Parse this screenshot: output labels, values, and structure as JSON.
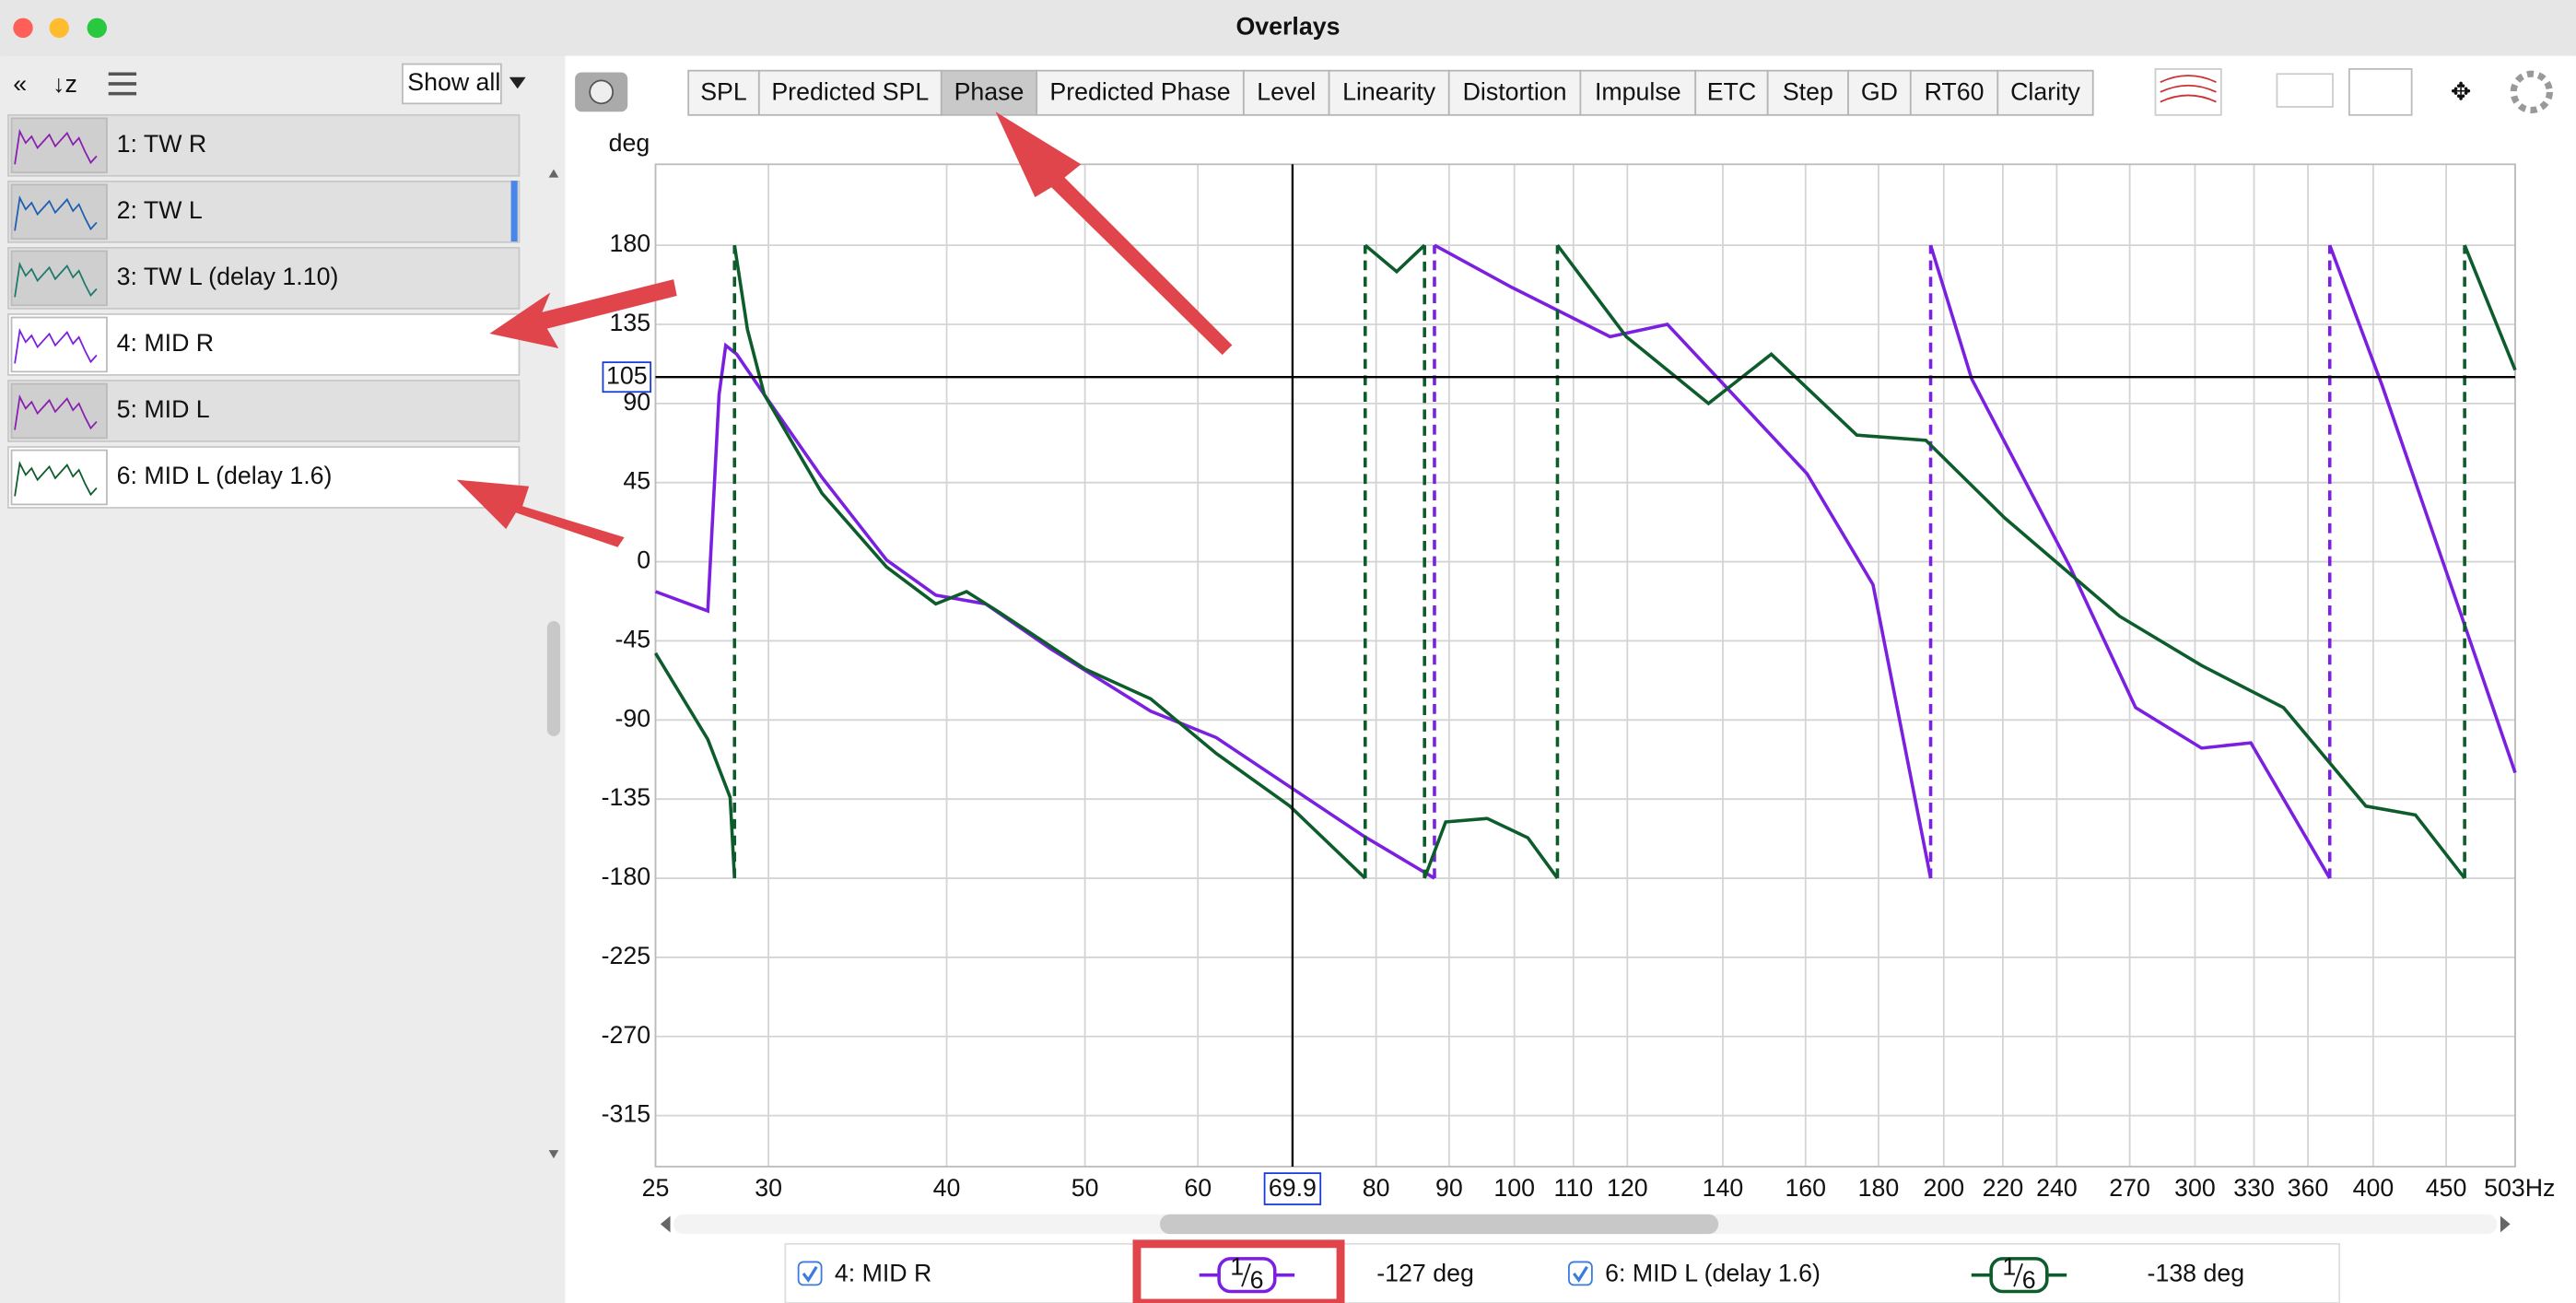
{
  "window": {
    "title": "Overlays"
  },
  "sidebar": {
    "filter": "Show all",
    "items": [
      {
        "label": "1: TW R",
        "active": false,
        "color": "#8a1fb0"
      },
      {
        "label": "2: TW L",
        "active": false,
        "color": "#1f5fb0"
      },
      {
        "label": "3: TW L (delay 1.10)",
        "active": false,
        "color": "#1f7a6a"
      },
      {
        "label": "4: MID R",
        "active": true,
        "color": "#7b1fe0"
      },
      {
        "label": "5: MID L",
        "active": false,
        "color": "#8a1fb0"
      },
      {
        "label": "6: MID L (delay 1.6)",
        "active": true,
        "color": "#0d5c2b"
      }
    ]
  },
  "toolbar": {
    "tabs": [
      {
        "label": "SPL",
        "active": false
      },
      {
        "label": "Predicted SPL",
        "active": false
      },
      {
        "label": "Phase",
        "active": true
      },
      {
        "label": "Predicted Phase",
        "active": false
      },
      {
        "label": "Level",
        "active": false
      },
      {
        "label": "Linearity",
        "active": false
      },
      {
        "label": "Distortion",
        "active": false
      },
      {
        "label": "Impulse",
        "active": false
      },
      {
        "label": "ETC",
        "active": false
      },
      {
        "label": "Step",
        "active": false
      },
      {
        "label": "GD",
        "active": false
      },
      {
        "label": "RT60",
        "active": false
      },
      {
        "label": "Clarity",
        "active": false
      }
    ]
  },
  "chart_data": {
    "type": "line",
    "ylabel": "deg",
    "log_x": true,
    "grid": true,
    "xlim": [
      25,
      503
    ],
    "ylim": [
      -344,
      226
    ],
    "xticks": [
      25,
      30,
      40,
      50,
      60,
      80,
      90,
      100,
      110,
      120,
      140,
      160,
      180,
      200,
      220,
      240,
      270,
      300,
      330,
      360,
      400,
      450,
      {
        "value": 503,
        "label": "503Hz"
      }
    ],
    "yticks": [
      180,
      135,
      90,
      45,
      0,
      -45,
      -90,
      -135,
      -180,
      -225,
      -270,
      -315
    ],
    "cursor": {
      "x": 69.9,
      "y": 105
    },
    "series": [
      {
        "name": "4: MID R",
        "color": "#7b1fe0",
        "x": [
          25,
          27.2,
          27.7,
          28.0,
          28.5,
          29.8,
          32.7,
          36.3,
          39.3,
          42.6,
          47.4,
          55.6,
          61.8,
          69.6,
          78.4,
          87.9,
          87.9,
          99.6,
          116.7,
          128,
          140.5,
          160.4,
          178.4,
          195.8,
          195.8,
          209.2,
          245.2,
          272.6,
          303.2,
          328.3,
          372.9,
          372.9,
          405.9,
          463.6,
          503
        ],
        "values": [
          -17,
          -28,
          95,
          123,
          118,
          95,
          48,
          1,
          -19,
          -24,
          -50,
          -85,
          -100,
          -128,
          -156,
          -180,
          180,
          156,
          128,
          135,
          100,
          50,
          -13,
          -180,
          180,
          104,
          -3,
          -83,
          -106,
          -103,
          -180,
          180,
          100,
          -36,
          -120
        ]
      },
      {
        "name": "6: MID L (delay 1.6)",
        "color": "#0d5c2b",
        "x": [
          25,
          27.2,
          28.2,
          28.4,
          28.4,
          29.0,
          29.8,
          32.7,
          36.3,
          39.3,
          41.3,
          43.4,
          50.0,
          55.6,
          61.8,
          69.6,
          78.6,
          78.6,
          82.7,
          86.5,
          86.5,
          89.5,
          95.7,
          102.2,
          107.2,
          107.2,
          119.8,
          136.8,
          151.4,
          173.8,
          194.3,
          220.6,
          265.6,
          303.2,
          346.1,
          395.3,
          428.2,
          463.6,
          463.6,
          503
        ],
        "values": [
          -52,
          -101,
          -134,
          -180,
          180,
          132,
          95,
          39,
          -3,
          -24,
          -17,
          -28,
          -61,
          -78,
          -109,
          -139,
          -180,
          180,
          165,
          180,
          -180,
          -148,
          -146,
          -157,
          -180,
          180,
          128,
          90,
          118,
          72,
          69,
          25,
          -31,
          -59,
          -83,
          -139,
          -144,
          -180,
          180,
          109
        ]
      }
    ]
  },
  "legend": [
    {
      "num": "1",
      "den": "6",
      "reading": "-127 deg"
    },
    {
      "num": "1",
      "den": "6",
      "reading": "-138 deg"
    }
  ]
}
